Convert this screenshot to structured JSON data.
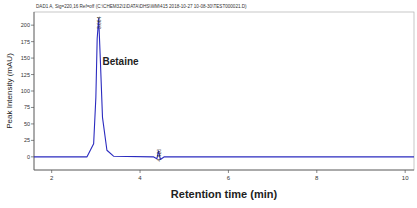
{
  "chart_data": {
    "type": "line",
    "title": "DAD1 A, Sig=220,16 Ref=off (C:\\CHEM32\\1\\DATA\\DHS\\WM\\415 2018-10-27 10-08-30\\TEST000021.D)",
    "x_label": "Retention time (min)",
    "y_label": "Peak Intensity (mAU)",
    "x": [
      1.6,
      2.8,
      2.95,
      3.0,
      3.03,
      3.064,
      3.1,
      3.15,
      3.25,
      3.4,
      4.3,
      4.38,
      4.42,
      4.46,
      4.55,
      4.7,
      10.2
    ],
    "values": [
      0,
      0,
      20,
      90,
      180,
      210,
      150,
      60,
      10,
      1,
      0,
      -3,
      9,
      -4,
      0,
      0,
      0
    ],
    "color": "#2b2bbf",
    "xlim": [
      1.6,
      10.2
    ],
    "ylim": [
      -20,
      220
    ],
    "xticks": [
      2,
      4,
      6,
      8,
      10
    ],
    "yticks": [
      0,
      25,
      50,
      75,
      100,
      125,
      150,
      175,
      200
    ],
    "grid": false,
    "peak_labels": [
      {
        "value": 3.064,
        "label": "3.064"
      },
      {
        "value": 4.42,
        "label": "4.420"
      }
    ],
    "annotations": [
      {
        "text": "Betaine",
        "x": 3.15,
        "y": 140
      }
    ]
  }
}
